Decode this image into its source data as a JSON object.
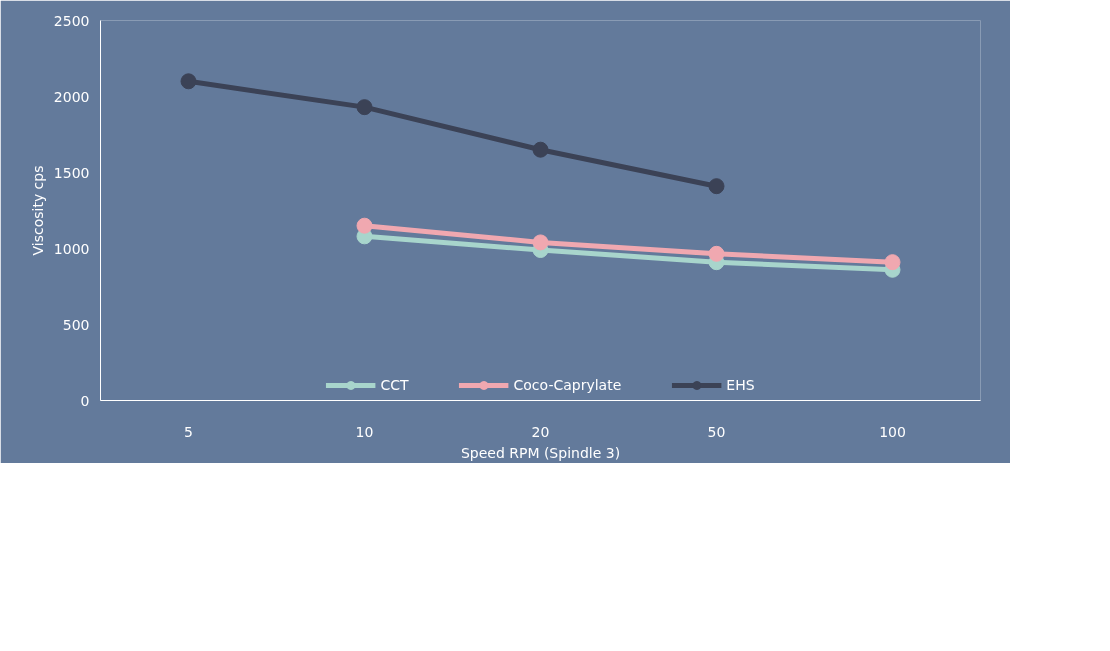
{
  "chart_data": {
    "type": "line",
    "xlabel": "Speed RPM (Spindle 3)",
    "ylabel": "Viscosity cps",
    "categories": [
      "5",
      "10",
      "20",
      "50",
      "100"
    ],
    "series": [
      {
        "name": "CCT",
        "color": "#a8d5cc",
        "values": [
          null,
          1080,
          990,
          910,
          860
        ]
      },
      {
        "name": "Coco-Caprylate",
        "color": "#f0a8b0",
        "values": [
          null,
          1150,
          1040,
          965,
          910
        ]
      },
      {
        "name": "EHS",
        "color": "#3b4256",
        "values": [
          2100,
          1930,
          1650,
          1410,
          null
        ]
      }
    ],
    "ylim": [
      0,
      2500
    ],
    "yticks": [
      0,
      500,
      1000,
      1500,
      2000,
      2500
    ],
    "grid": false,
    "legend": "bottom",
    "marker": "circle",
    "line_style": "solid"
  }
}
